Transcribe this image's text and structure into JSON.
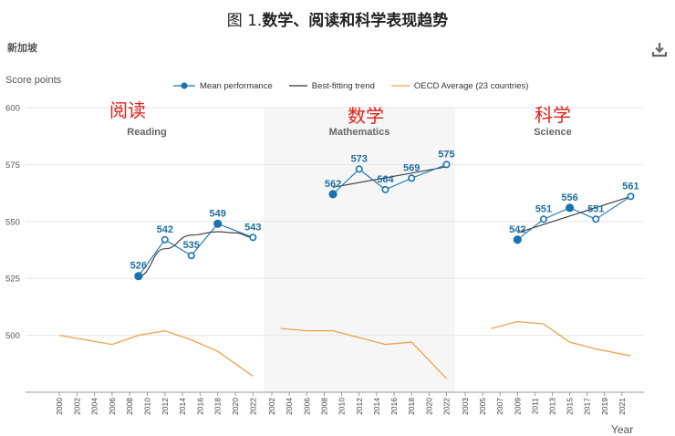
{
  "title": {
    "prefix": "图 1.",
    "main": "数学、阅读和科学表现趋势"
  },
  "country": "新加坡",
  "download_icon": "download-icon",
  "colors": {
    "mean": "#1a73b0",
    "trend": "#333333",
    "oecd": "#f0a04b",
    "mid_panel_bg": "#f6f6f6",
    "red_label": "#e0201b"
  },
  "chart_data": {
    "type": "line",
    "ylabel": "Score points",
    "xlabel": "Year",
    "ylim": [
      475,
      600
    ],
    "yticks": [
      500,
      525,
      550,
      575,
      600
    ],
    "legend": {
      "placement": "top",
      "entries": [
        "Mean performance",
        "Best-fitting trend",
        "OECD Average (23 countries)"
      ]
    },
    "grid": true,
    "panels": [
      {
        "name": "Reading",
        "cn_label": "阅读",
        "x_ticks": [
          "2000",
          "2002",
          "2004",
          "2006",
          "2008",
          "2010",
          "2012",
          "2014",
          "2016",
          "2018",
          "2020",
          "2022"
        ],
        "mean": [
          {
            "x": 2009,
            "y": 526,
            "label": "526"
          },
          {
            "x": 2012,
            "y": 542,
            "label": "542"
          },
          {
            "x": 2015,
            "y": 535,
            "label": "535"
          },
          {
            "x": 2018,
            "y": 549,
            "label": "549"
          },
          {
            "x": 2022,
            "y": 543,
            "label": "543"
          }
        ],
        "trend": [
          {
            "x": 2009,
            "y": 526
          },
          {
            "x": 2012,
            "y": 538
          },
          {
            "x": 2015,
            "y": 544
          },
          {
            "x": 2018,
            "y": 545.5
          },
          {
            "x": 2020,
            "y": 545
          },
          {
            "x": 2022,
            "y": 543
          }
        ],
        "oecd": [
          {
            "x": 2000,
            "y": 500
          },
          {
            "x": 2003,
            "y": 498
          },
          {
            "x": 2006,
            "y": 496
          },
          {
            "x": 2009,
            "y": 500
          },
          {
            "x": 2012,
            "y": 502
          },
          {
            "x": 2015,
            "y": 498
          },
          {
            "x": 2018,
            "y": 493
          },
          {
            "x": 2022,
            "y": 482
          }
        ]
      },
      {
        "name": "Mathematics",
        "cn_label": "数学",
        "x_ticks": [
          "2002",
          "2004",
          "2006",
          "2008",
          "2010",
          "2012",
          "2014",
          "2016",
          "2018",
          "2020",
          "2022"
        ],
        "mean": [
          {
            "x": 2009,
            "y": 562,
            "label": "562"
          },
          {
            "x": 2012,
            "y": 573,
            "label": "573"
          },
          {
            "x": 2015,
            "y": 564,
            "label": "564"
          },
          {
            "x": 2018,
            "y": 569,
            "label": "569"
          },
          {
            "x": 2022,
            "y": 575,
            "label": "575"
          }
        ],
        "trend": [
          {
            "x": 2009,
            "y": 565
          },
          {
            "x": 2022,
            "y": 574
          }
        ],
        "oecd": [
          {
            "x": 2003,
            "y": 503
          },
          {
            "x": 2006,
            "y": 502
          },
          {
            "x": 2009,
            "y": 502
          },
          {
            "x": 2012,
            "y": 499
          },
          {
            "x": 2015,
            "y": 496
          },
          {
            "x": 2018,
            "y": 497
          },
          {
            "x": 2022,
            "y": 481
          }
        ]
      },
      {
        "name": "Science",
        "cn_label": "科学",
        "x_ticks": [
          "2003",
          "2005",
          "2007",
          "2009",
          "2011",
          "2013",
          "2015",
          "2017",
          "2019",
          "2021"
        ],
        "mean": [
          {
            "x": 2009,
            "y": 542,
            "label": "542"
          },
          {
            "x": 2012,
            "y": 551,
            "label": "551"
          },
          {
            "x": 2015,
            "y": 556,
            "label": "556"
          },
          {
            "x": 2018,
            "y": 551,
            "label": "551"
          },
          {
            "x": 2022,
            "y": 561,
            "label": "561"
          }
        ],
        "trend": [
          {
            "x": 2009,
            "y": 545
          },
          {
            "x": 2022,
            "y": 561
          }
        ],
        "oecd": [
          {
            "x": 2006,
            "y": 503
          },
          {
            "x": 2009,
            "y": 506
          },
          {
            "x": 2012,
            "y": 505
          },
          {
            "x": 2015,
            "y": 497
          },
          {
            "x": 2018,
            "y": 494
          },
          {
            "x": 2022,
            "y": 491
          }
        ]
      }
    ]
  }
}
